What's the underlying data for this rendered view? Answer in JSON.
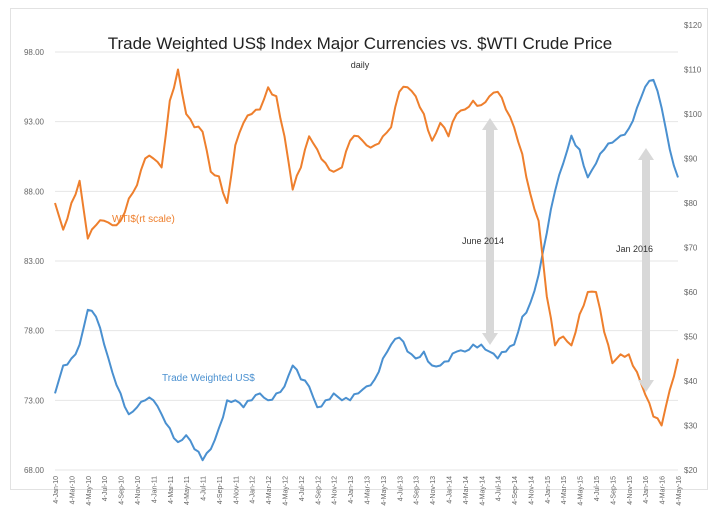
{
  "chart_data": {
    "type": "line",
    "title": "Trade Weighted US$ Index Major Currencies vs. $WTI Crude Price",
    "subtitle": "daily",
    "x_tick_labels": [
      "4-Jan-10",
      "4-Mar-10",
      "4-May-10",
      "4-Jul-10",
      "4-Sep-10",
      "4-Nov-10",
      "4-Jan-11",
      "4-Mar-11",
      "4-May-11",
      "4-Jul-11",
      "4-Sep-11",
      "4-Nov-11",
      "4-Jan-12",
      "4-Mar-12",
      "4-May-12",
      "4-Jul-12",
      "4-Sep-12",
      "4-Nov-12",
      "4-Jan-13",
      "4-Mar-13",
      "4-May-13",
      "4-Jul-13",
      "4-Sep-13",
      "4-Nov-13",
      "4-Jan-14",
      "4-Mar-14",
      "4-May-14",
      "4-Jul-14",
      "4-Sep-14",
      "4-Nov-14",
      "4-Jan-15",
      "4-Mar-15",
      "4-May-15",
      "4-Jul-15",
      "4-Sep-15",
      "4-Nov-15",
      "4-Jan-16",
      "4-Mar-16",
      "4-May-16"
    ],
    "y_left": {
      "ylim": [
        68,
        98
      ],
      "ticks": [
        "68.00",
        "73.00",
        "78.00",
        "83.00",
        "88.00",
        "93.00",
        "98.00"
      ]
    },
    "y_right": {
      "ylim": [
        20,
        120
      ],
      "ticks": [
        "$20",
        "$30",
        "$40",
        "$50",
        "$60",
        "$70",
        "$80",
        "$90",
        "$100",
        "$110",
        "$120"
      ]
    },
    "x_unit": "months since Jan 2010",
    "series": [
      {
        "name": "Trade Weighted US$",
        "axis": "left",
        "color": "#4a90d0",
        "values": [
          73.5,
          75.5,
          76,
          77,
          79.5,
          79,
          77,
          75,
          73.5,
          72,
          72.5,
          73,
          73,
          72,
          71,
          70,
          70.5,
          69.5,
          68.7,
          69.5,
          71,
          73,
          73,
          72.5,
          73,
          73.5,
          73,
          73.5,
          74,
          75.5,
          74.5,
          74,
          72.5,
          73,
          73.5,
          73,
          73,
          73.5,
          74,
          74.5,
          76,
          77,
          77.5,
          76.5,
          76,
          76.5,
          75.5,
          75.5,
          75.8,
          76.5,
          76.5,
          77,
          77,
          76.5,
          76,
          76.5,
          77,
          79,
          80,
          82,
          85,
          88,
          90,
          92,
          91,
          89,
          90,
          91,
          91.5,
          92,
          92.5,
          94,
          95.5,
          96,
          94,
          91,
          89
        ]
      },
      {
        "name": "WTI$",
        "axis": "right",
        "color": "#ee7f2d",
        "values": [
          80,
          74,
          80,
          85,
          72,
          75,
          76,
          75,
          76,
          81,
          84,
          90,
          90,
          88,
          103,
          110,
          100,
          97,
          96,
          87,
          86,
          80,
          93,
          98,
          100,
          101,
          106,
          104,
          95,
          83,
          88,
          95,
          92,
          89,
          87,
          88,
          94,
          95,
          93,
          93,
          95,
          97,
          105,
          106,
          104,
          100,
          94,
          98,
          95,
          100,
          101,
          103,
          102,
          104,
          105,
          101,
          97,
          91,
          82,
          76,
          59,
          48,
          50,
          48,
          55,
          60,
          60,
          51,
          44,
          46,
          46,
          42,
          37,
          32,
          30,
          38,
          45
        ]
      }
    ],
    "annotations": [
      "WTI$(rt scale)",
      "Trade Weighted US$",
      "June 2014",
      "Jan 2016"
    ]
  }
}
